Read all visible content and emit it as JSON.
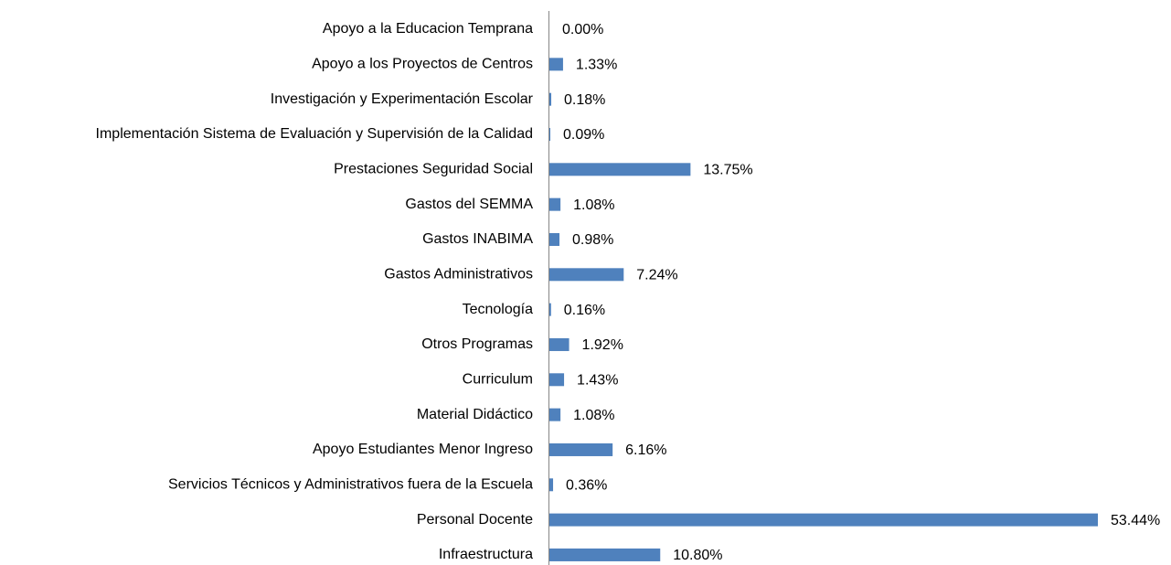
{
  "chart_data": {
    "type": "bar",
    "orientation": "horizontal",
    "categories": [
      "Apoyo a la Educacion Temprana",
      "Apoyo a los Proyectos de Centros",
      "Investigación y Experimentación Escolar",
      "Implementación Sistema de Evaluación y Supervisión de la Calidad",
      "Prestaciones Seguridad Social",
      "Gastos del SEMMA",
      "Gastos INABIMA",
      "Gastos Administrativos",
      "Tecnología",
      "Otros Programas",
      "Curriculum",
      "Material Didáctico",
      "Apoyo Estudiantes Menor Ingreso",
      "Servicios Técnicos y Administrativos fuera de la Escuela",
      "Personal Docente",
      "Infraestructura"
    ],
    "values": [
      0.0,
      1.33,
      0.18,
      0.09,
      13.75,
      1.08,
      0.98,
      7.24,
      0.16,
      1.92,
      1.43,
      1.08,
      6.16,
      0.36,
      53.44,
      10.8
    ],
    "value_labels": [
      "0.00%",
      "1.33%",
      "0.18%",
      "0.09%",
      "13.75%",
      "1.08%",
      "0.98%",
      "7.24%",
      "0.16%",
      "1.92%",
      "1.43%",
      "1.08%",
      "6.16%",
      "0.36%",
      "53.44%",
      "10.80%"
    ],
    "color": "#4f81bd"
  }
}
